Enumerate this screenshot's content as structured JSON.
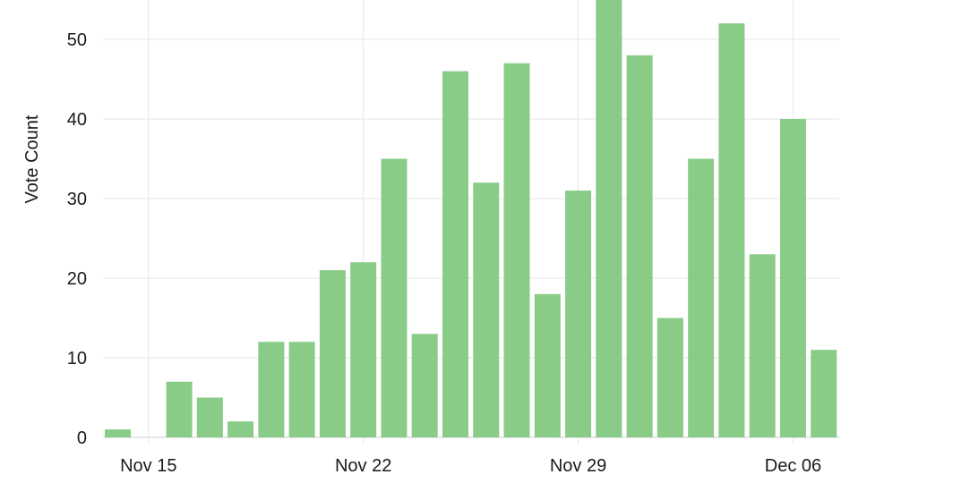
{
  "chart_data": {
    "type": "bar",
    "ylabel": "Vote Count",
    "xlabel": "",
    "ylim": [
      0,
      55
    ],
    "yticks": [
      0,
      10,
      20,
      30,
      40,
      50
    ],
    "x_ticks": [
      "Nov 15",
      "Nov 22",
      "Nov 29",
      "Dec 06"
    ],
    "grid": true,
    "bar_color": "#88cc88",
    "categories": [
      "Nov 14",
      "Nov 15",
      "Nov 16",
      "Nov 17",
      "Nov 18",
      "Nov 19",
      "Nov 20",
      "Nov 21",
      "Nov 22",
      "Nov 23",
      "Nov 24",
      "Nov 25",
      "Nov 26",
      "Nov 27",
      "Nov 28",
      "Nov 29",
      "Nov 30",
      "Dec 01",
      "Dec 02",
      "Dec 03",
      "Dec 04",
      "Dec 05",
      "Dec 06",
      "Dec 07"
    ],
    "values": [
      1,
      0,
      7,
      5,
      2,
      12,
      12,
      21,
      22,
      35,
      13,
      46,
      32,
      47,
      18,
      31,
      55,
      48,
      15,
      35,
      52,
      23,
      40,
      11
    ]
  }
}
